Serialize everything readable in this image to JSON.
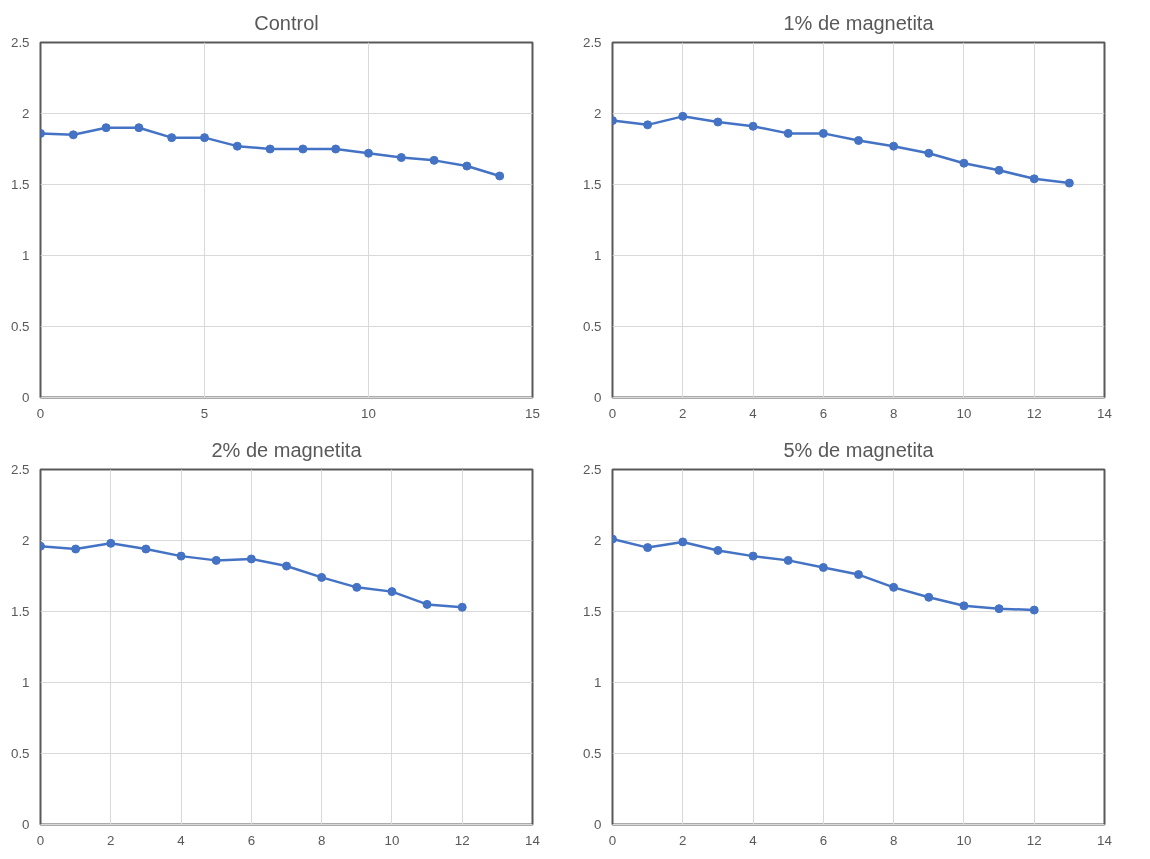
{
  "chart_data": [
    {
      "type": "line",
      "title": "Control",
      "x": [
        0,
        1,
        2,
        3,
        4,
        5,
        6,
        7,
        8,
        9,
        10,
        11,
        12,
        13,
        14
      ],
      "series": [
        {
          "color": "#4472c4",
          "values": [
            1.86,
            1.85,
            1.9,
            1.9,
            1.83,
            1.83,
            1.77,
            1.75,
            1.75,
            1.75,
            1.72,
            1.69,
            1.67,
            1.63,
            1.56
          ]
        }
      ],
      "xlim": [
        0,
        15
      ],
      "xticks": [
        0,
        5,
        10,
        15
      ],
      "ylim": [
        0,
        2.5
      ],
      "yticks": [
        0,
        0.5,
        1,
        1.5,
        2,
        2.5
      ],
      "grid": true,
      "marker": "circle",
      "line_style": "solid"
    },
    {
      "type": "line",
      "title": "1% de magnetita",
      "x": [
        0,
        1,
        2,
        3,
        4,
        5,
        6,
        7,
        8,
        9,
        10,
        11,
        12,
        13
      ],
      "series": [
        {
          "color": "#4472c4",
          "values": [
            1.95,
            1.92,
            1.98,
            1.94,
            1.91,
            1.86,
            1.86,
            1.81,
            1.77,
            1.72,
            1.65,
            1.6,
            1.54,
            1.51
          ]
        }
      ],
      "xlim": [
        0,
        14
      ],
      "xticks": [
        0,
        2,
        4,
        6,
        8,
        10,
        12,
        14
      ],
      "ylim": [
        0,
        2.5
      ],
      "yticks": [
        0,
        0.5,
        1,
        1.5,
        2,
        2.5
      ],
      "grid": true,
      "marker": "circle",
      "line_style": "solid"
    },
    {
      "type": "line",
      "title": "2% de magnetita",
      "x": [
        0,
        1,
        2,
        3,
        4,
        5,
        6,
        7,
        8,
        9,
        10,
        11,
        12
      ],
      "series": [
        {
          "color": "#4472c4",
          "values": [
            1.96,
            1.94,
            1.98,
            1.94,
            1.89,
            1.86,
            1.87,
            1.82,
            1.74,
            1.67,
            1.64,
            1.55,
            1.53
          ]
        }
      ],
      "xlim": [
        0,
        14
      ],
      "xticks": [
        0,
        2,
        4,
        6,
        8,
        10,
        12,
        14
      ],
      "ylim": [
        0,
        2.5
      ],
      "yticks": [
        0,
        0.5,
        1,
        1.5,
        2,
        2.5
      ],
      "grid": true,
      "marker": "circle",
      "line_style": "solid"
    },
    {
      "type": "line",
      "title": "5% de magnetita",
      "x": [
        0,
        1,
        2,
        3,
        4,
        5,
        6,
        7,
        8,
        9,
        10,
        11,
        12
      ],
      "series": [
        {
          "color": "#4472c4",
          "values": [
            2.01,
            1.95,
            1.99,
            1.93,
            1.89,
            1.86,
            1.81,
            1.76,
            1.67,
            1.6,
            1.54,
            1.52,
            1.51
          ]
        }
      ],
      "xlim": [
        0,
        14
      ],
      "xticks": [
        0,
        2,
        4,
        6,
        8,
        10,
        12,
        14
      ],
      "ylim": [
        0,
        2.5
      ],
      "yticks": [
        0,
        0.5,
        1,
        1.5,
        2,
        2.5
      ],
      "grid": true,
      "marker": "circle",
      "line_style": "solid"
    }
  ]
}
